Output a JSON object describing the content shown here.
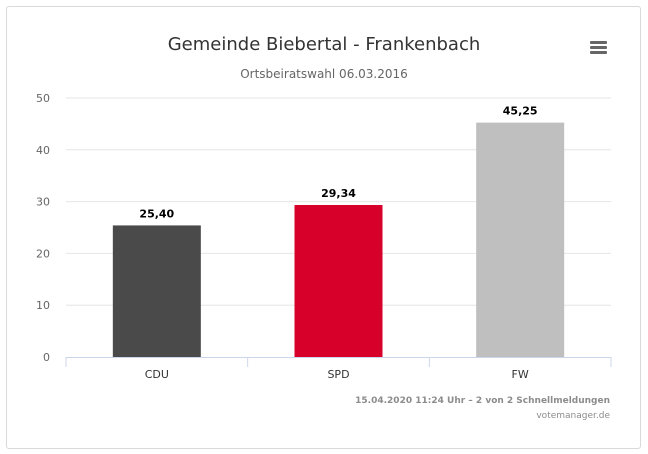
{
  "header": {
    "title": "Gemeinde Biebertal - Frankenbach",
    "subtitle": "Ortsbeiratswahl 06.03.2016",
    "menu_icon": "hamburger-menu-icon"
  },
  "chart_data": {
    "type": "bar",
    "title": "Gemeinde Biebertal - Frankenbach",
    "subtitle": "Ortsbeiratswahl 06.03.2016",
    "categories": [
      "CDU",
      "SPD",
      "FW"
    ],
    "values": [
      25.4,
      29.34,
      45.25
    ],
    "value_labels": [
      "25,40",
      "29,34",
      "45,25"
    ],
    "colors": [
      "#4a4a4a",
      "#d7002a",
      "#bfbfbf"
    ],
    "ylim": [
      0,
      50
    ],
    "yticks": [
      "0",
      "10",
      "20",
      "30",
      "40",
      "50"
    ],
    "xlabel": "",
    "ylabel": "",
    "grid": true
  },
  "footer": {
    "timestamp": "15.04.2020 11:24 Uhr – 2 von 2 Schnellmeldungen",
    "credits": "votemanager.de"
  }
}
